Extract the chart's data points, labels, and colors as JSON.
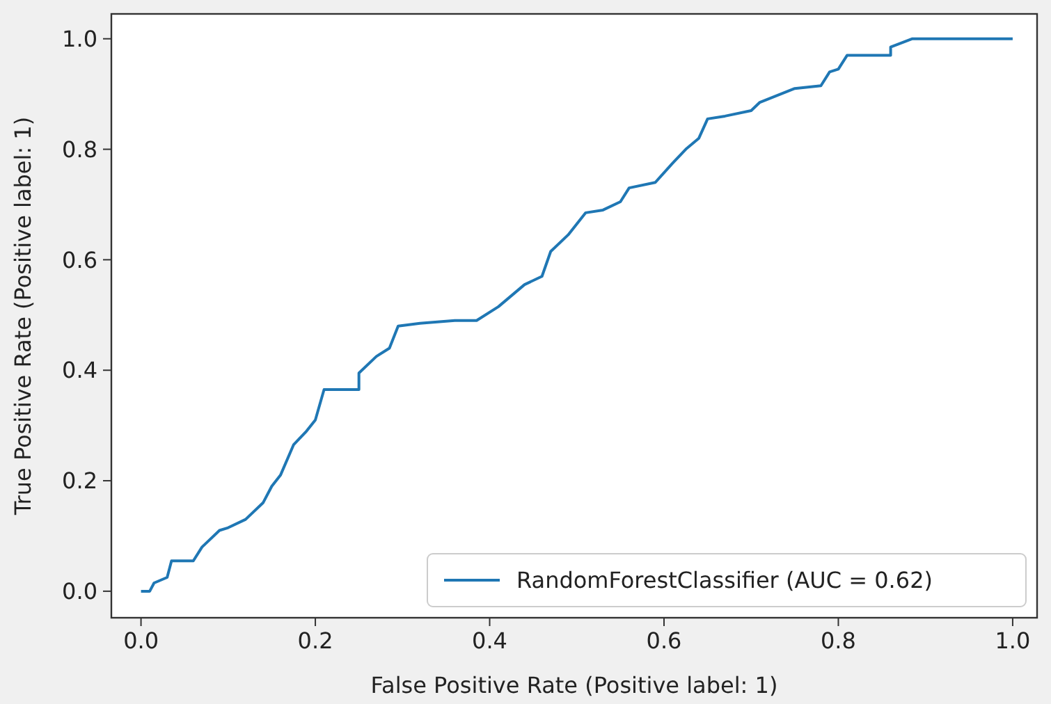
{
  "chart_data": {
    "type": "line",
    "xlabel": "False Positive Rate (Positive label: 1)",
    "ylabel": "True Positive Rate (Positive label: 1)",
    "xlim": [
      -0.034,
      1.028
    ],
    "ylim": [
      -0.048,
      1.045
    ],
    "xticks": [
      {
        "value": 0,
        "label": "0.0"
      },
      {
        "value": 0.2,
        "label": "0.2"
      },
      {
        "value": 0.4,
        "label": "0.4"
      },
      {
        "value": 0.6,
        "label": "0.6"
      },
      {
        "value": 0.8,
        "label": "0.8"
      },
      {
        "value": 1,
        "label": "1.0"
      }
    ],
    "yticks": [
      {
        "value": 0,
        "label": "0.0"
      },
      {
        "value": 0.2,
        "label": "0.2"
      },
      {
        "value": 0.4,
        "label": "0.4"
      },
      {
        "value": 0.6,
        "label": "0.6"
      },
      {
        "value": 0.8,
        "label": "0.8"
      },
      {
        "value": 1,
        "label": "1.0"
      }
    ],
    "legend": "bottom right",
    "grid": false,
    "series": [
      {
        "name": "RandomForestClassifier (AUC = 0.62)",
        "color": "#1f77b4",
        "x": [
          0,
          0.01,
          0.015,
          0.03,
          0.035,
          0.06,
          0.07,
          0.09,
          0.1,
          0.12,
          0.14,
          0.15,
          0.16,
          0.175,
          0.19,
          0.2,
          0.21,
          0.25,
          0.25,
          0.27,
          0.285,
          0.295,
          0.32,
          0.36,
          0.385,
          0.41,
          0.44,
          0.46,
          0.47,
          0.49,
          0.51,
          0.53,
          0.55,
          0.56,
          0.59,
          0.61,
          0.625,
          0.64,
          0.65,
          0.67,
          0.7,
          0.71,
          0.75,
          0.78,
          0.79,
          0.8,
          0.81,
          0.86,
          0.86,
          0.885,
          1
        ],
        "values": [
          0,
          0,
          0.015,
          0.025,
          0.055,
          0.055,
          0.08,
          0.11,
          0.115,
          0.13,
          0.16,
          0.19,
          0.21,
          0.265,
          0.29,
          0.31,
          0.365,
          0.365,
          0.395,
          0.425,
          0.44,
          0.48,
          0.485,
          0.49,
          0.49,
          0.515,
          0.555,
          0.57,
          0.615,
          0.645,
          0.685,
          0.69,
          0.705,
          0.73,
          0.74,
          0.775,
          0.8,
          0.82,
          0.855,
          0.86,
          0.87,
          0.885,
          0.91,
          0.915,
          0.94,
          0.945,
          0.97,
          0.97,
          0.985,
          1,
          1
        ]
      }
    ]
  }
}
